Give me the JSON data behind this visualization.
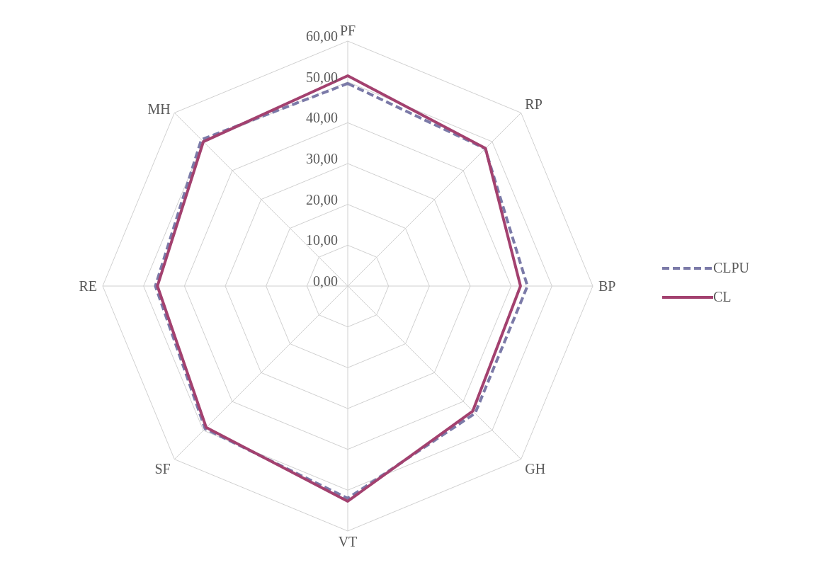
{
  "chart_data": {
    "type": "radar",
    "categories": [
      "PF",
      "RP",
      "BP",
      "GH",
      "VT",
      "SF",
      "RE",
      "MH"
    ],
    "series": [
      {
        "name": "CLPU",
        "color": "#7b7aa8",
        "line_style": "dashed",
        "values": [
          49.6,
          47.6,
          44.0,
          44.1,
          52.0,
          49.4,
          47.1,
          50.7
        ]
      },
      {
        "name": "CL",
        "color": "#a3416f",
        "line_style": "solid",
        "values": [
          51.5,
          47.7,
          42.3,
          43.3,
          52.7,
          49.0,
          46.6,
          50.0
        ]
      }
    ],
    "ylim": [
      0,
      60
    ],
    "yticks": [
      {
        "value": 0,
        "label": "0,00"
      },
      {
        "value": 10,
        "label": "10,00"
      },
      {
        "value": 20,
        "label": "20,00"
      },
      {
        "value": 30,
        "label": "30,00"
      },
      {
        "value": 40,
        "label": "40,00"
      },
      {
        "value": 50,
        "label": "50,00"
      },
      {
        "value": 60,
        "label": "60,00"
      }
    ],
    "grid": true,
    "legend": "right",
    "marker": "none"
  }
}
